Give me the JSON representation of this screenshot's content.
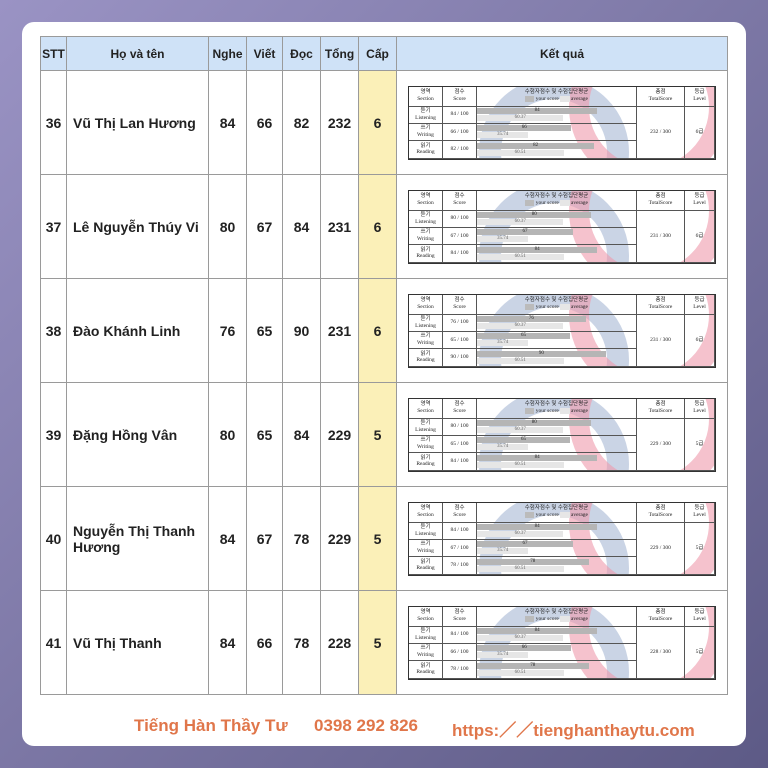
{
  "table": {
    "headers": [
      "STT",
      "Họ và tên",
      "Nghe",
      "Viết",
      "Đọc",
      "Tổng",
      "Cấp",
      "Kết quả"
    ],
    "rows": [
      {
        "stt": "36",
        "name": "Vũ Thị Lan Hương",
        "nghe": "84",
        "viet": "66",
        "doc": "82",
        "tong": "232",
        "cap": "6",
        "result": {
          "listening": 84,
          "writing": 66,
          "reading": 82,
          "total": "232 / 300",
          "level": "6급"
        }
      },
      {
        "stt": "37",
        "name": "Lê Nguyễn Thúy Vi",
        "nghe": "80",
        "viet": "67",
        "doc": "84",
        "tong": "231",
        "cap": "6",
        "result": {
          "listening": 80,
          "writing": 67,
          "reading": 84,
          "total": "231 / 300",
          "level": "6급"
        }
      },
      {
        "stt": "38",
        "name": "Đào Khánh Linh",
        "nghe": "76",
        "viet": "65",
        "doc": "90",
        "tong": "231",
        "cap": "6",
        "result": {
          "listening": 76,
          "writing": 65,
          "reading": 90,
          "total": "231 / 300",
          "level": "6급"
        }
      },
      {
        "stt": "39",
        "name": "Đặng Hồng Vân",
        "nghe": "80",
        "viet": "65",
        "doc": "84",
        "tong": "229",
        "cap": "5",
        "result": {
          "listening": 80,
          "writing": 65,
          "reading": 84,
          "total": "229 / 300",
          "level": "5급"
        }
      },
      {
        "stt": "40",
        "name": "Nguyễn Thị Thanh Hương",
        "nghe": "84",
        "viet": "67",
        "doc": "78",
        "tong": "229",
        "cap": "5",
        "result": {
          "listening": 84,
          "writing": 67,
          "reading": 78,
          "total": "229 / 300",
          "level": "5급"
        }
      },
      {
        "stt": "41",
        "name": "Vũ Thị Thanh",
        "nghe": "84",
        "viet": "66",
        "doc": "78",
        "tong": "228",
        "cap": "5",
        "result": {
          "listening": 84,
          "writing": 66,
          "reading": 78,
          "total": "228 / 300",
          "level": "5급"
        }
      }
    ]
  },
  "score_card": {
    "section_ko": "영역",
    "section_en": "Section",
    "score_ko": "점수",
    "score_en": "Score",
    "chart_title": "수험자점수 및 수험집단평균",
    "your_score": "your score",
    "average": "average",
    "total_ko": "총점",
    "total_en": "TotalScore",
    "level_ko": "등급",
    "level_en": "Level",
    "sections": [
      {
        "ko": "듣기",
        "en": "Listening",
        "avg": 60.37
      },
      {
        "ko": "쓰기",
        "en": "Writing",
        "avg": 35.74
      },
      {
        "ko": "읽기",
        "en": "Reading",
        "avg": 60.51
      }
    ],
    "max": "100"
  },
  "footer": {
    "brand": "Tiếng Hàn Thầy Tư",
    "phone": "0398 292 826",
    "url": "https:／／tienghanthaytu.com"
  },
  "colors": {
    "header": "#cfe2f7",
    "level_col": "#fbf0b8",
    "footer_text": "#e0764a"
  }
}
